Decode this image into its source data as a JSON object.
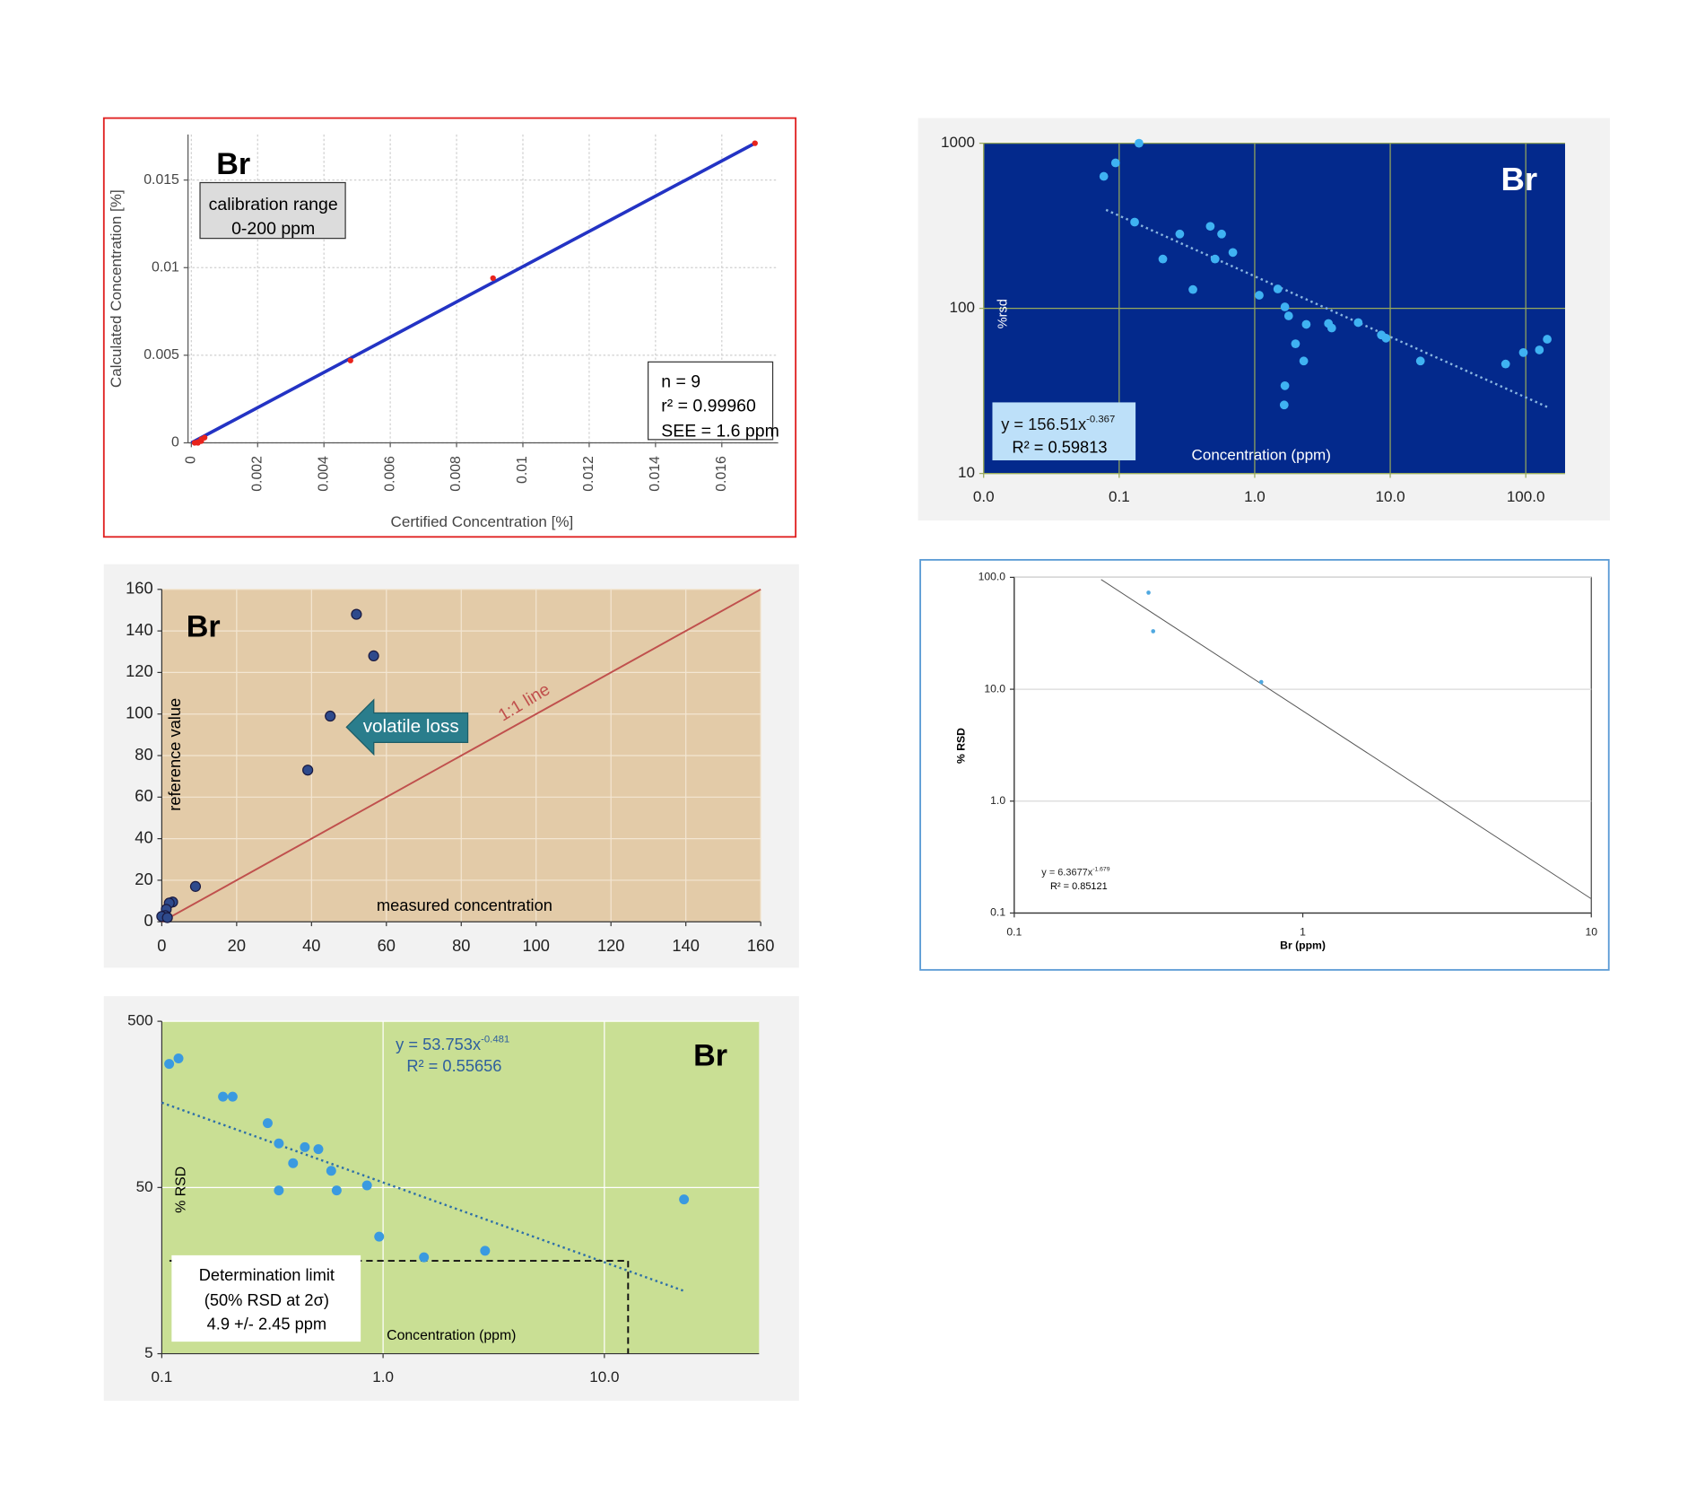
{
  "chart_data": [
    {
      "type": "scatter",
      "title": "Br",
      "x_label": "Certified Concentration [%]",
      "y_label": "Calculated Concentration [%]",
      "range_line1": "calibration range",
      "range_line2": "0-200 ppm",
      "stat_n": "n = 9",
      "stat_r2": "r² = 0.99960",
      "stat_see": "SEE = 1.6 ppm",
      "x": [
        0.0001,
        0.0002,
        0.0003,
        0.0002,
        0.0003,
        0.0004,
        0.0048,
        0.0091,
        0.017
      ],
      "values": [
        0,
        0,
        0.0001,
        5e-05,
        0.0002,
        0.0003,
        0.0047,
        0.0094,
        0.0171
      ],
      "color": "#e8231c",
      "lines": [
        {
          "x": [
            0,
            0.017
          ],
          "values": [
            0,
            0.0171
          ],
          "color": "#2333c4",
          "style": "solid"
        }
      ],
      "xlim": [
        -0.0001,
        0.0177
      ],
      "ylim": [
        0,
        0.0176
      ],
      "xticks": [
        0,
        0.002,
        0.004,
        0.006,
        0.008,
        0.01,
        0.012,
        0.014,
        0.016
      ],
      "yticks": [
        0,
        0.005,
        0.01,
        0.015
      ],
      "grid": true
    },
    {
      "type": "scatter",
      "title": "Br",
      "x_label": "Concentration (ppm)",
      "y_label": "%rsd",
      "equation": "y = 156.51x",
      "equation_exponent": "-0.367",
      "r2": "R² = 0.59813",
      "x": [
        0.077,
        0.094,
        0.14,
        0.13,
        0.21,
        0.28,
        0.35,
        0.47,
        0.51,
        0.57,
        0.69,
        1.08,
        1.48,
        1.67,
        1.78,
        2.4,
        2.0,
        2.3,
        1.67,
        1.65,
        3.5,
        3.7,
        5.8,
        8.6,
        9.3,
        16.7,
        71,
        96,
        126,
        144
      ],
      "values": [
        630,
        760,
        1000,
        333,
        199,
        282,
        130,
        314,
        199,
        282,
        218,
        120,
        131,
        102,
        90,
        80,
        61,
        48,
        34,
        26,
        81,
        76,
        82,
        69,
        66,
        48,
        46,
        54,
        56,
        65
      ],
      "color": "#3fb2f2",
      "lines": [
        {
          "x": [
            0.08,
            150
          ],
          "values": [
            395,
            24.9
          ],
          "color": "#8ab6e0",
          "style": "dotted"
        }
      ],
      "xscale": "log",
      "yscale": "log",
      "xlim": [
        0.01,
        195
      ],
      "ylim": [
        10,
        1000
      ],
      "xticks": [
        {
          "value": 0.01,
          "label": "0.0"
        },
        0.1,
        {
          "value": 1,
          "label": "1.0"
        },
        {
          "value": 10,
          "label": "10.0"
        },
        {
          "value": 100,
          "label": "100.0"
        }
      ],
      "yticks": [
        10,
        100,
        1000
      ],
      "grid": true
    },
    {
      "type": "scatter",
      "title": "Br",
      "x_label": "measured concentration",
      "y_label": "reference value",
      "arrow_label": "volatile loss",
      "line_label": "1:1 line",
      "x": [
        52,
        56.6,
        45,
        39,
        9,
        2.9,
        2,
        1.2,
        0.9,
        0,
        1.5
      ],
      "values": [
        148,
        128,
        99,
        73,
        17,
        9.5,
        9,
        6,
        3,
        2.6,
        2
      ],
      "color": "#2e4a8c",
      "lines": [
        {
          "x": [
            0,
            160
          ],
          "values": [
            0,
            160
          ],
          "color": "#c0504d",
          "style": "solid"
        }
      ],
      "xlim": [
        0,
        160
      ],
      "ylim": [
        0,
        160
      ],
      "xticks": [
        0,
        20,
        40,
        60,
        80,
        100,
        120,
        140,
        160
      ],
      "yticks": [
        0,
        20,
        40,
        60,
        80,
        100,
        120,
        140,
        160
      ],
      "grid": true
    },
    {
      "type": "scatter",
      "x_label": "Br (ppm)",
      "y_label": "% RSD",
      "equation": "y = 6.3677x",
      "equation_exponent": "-1.679",
      "r2": "R² = 0.85121",
      "x": [
        0.292,
        0.303,
        0.718
      ],
      "values": [
        73,
        33,
        11.6
      ],
      "color": "#4fa8e0",
      "lines": [
        {
          "x": [
            0.2,
            10
          ],
          "values": [
            95.6,
            0.134
          ],
          "color": "#555555",
          "style": "solid"
        }
      ],
      "xscale": "log",
      "yscale": "log",
      "xlim": [
        0.1,
        10
      ],
      "ylim": [
        0.1,
        100
      ],
      "xticks": [
        0.1,
        1,
        10
      ],
      "yticks": [
        0.1,
        {
          "value": 1,
          "label": "1.0"
        },
        {
          "value": 10,
          "label": "10.0"
        },
        {
          "value": 100,
          "label": "100.0"
        }
      ],
      "grid": "y"
    },
    {
      "type": "scatter",
      "title": "Br",
      "x_label": "Concentration (ppm)",
      "y_label": "% RSD",
      "equation": "y = 53.753x",
      "equation_exponent": "-0.481",
      "r2": "R² = 0.55656",
      "limit_line1": "Determination limit",
      "limit_line2": "(50% RSD at 2σ)",
      "limit_line3": "4.9 +/- 2.45 ppm",
      "x": [
        0.108,
        0.119,
        0.189,
        0.209,
        0.301,
        0.338,
        0.443,
        0.51,
        0.392,
        0.583,
        0.338,
        0.617,
        0.846,
        0.96,
        1.53,
        2.89,
        22.9
      ],
      "values": [
        277,
        299,
        176,
        176,
        122,
        92,
        87.5,
        85,
        70,
        63,
        48,
        48,
        51.5,
        25.3,
        19,
        20.8,
        42.4
      ],
      "color": "#3a9ae0",
      "lines": [
        {
          "x": [
            0.1,
            23
          ],
          "values": [
            162,
            11.9
          ],
          "color": "#2e6fa8",
          "style": "dotted"
        }
      ],
      "limit": {
        "x": 12.8,
        "y": 18.1
      },
      "xscale": "log",
      "yscale": "log",
      "xlim": [
        0.1,
        50
      ],
      "ylim": [
        5,
        500
      ],
      "xticks": [
        0.1,
        {
          "value": 1,
          "label": "1.0"
        },
        {
          "value": 10,
          "label": "10.0"
        }
      ],
      "yticks": [
        5,
        50,
        500
      ],
      "grid": true
    }
  ]
}
